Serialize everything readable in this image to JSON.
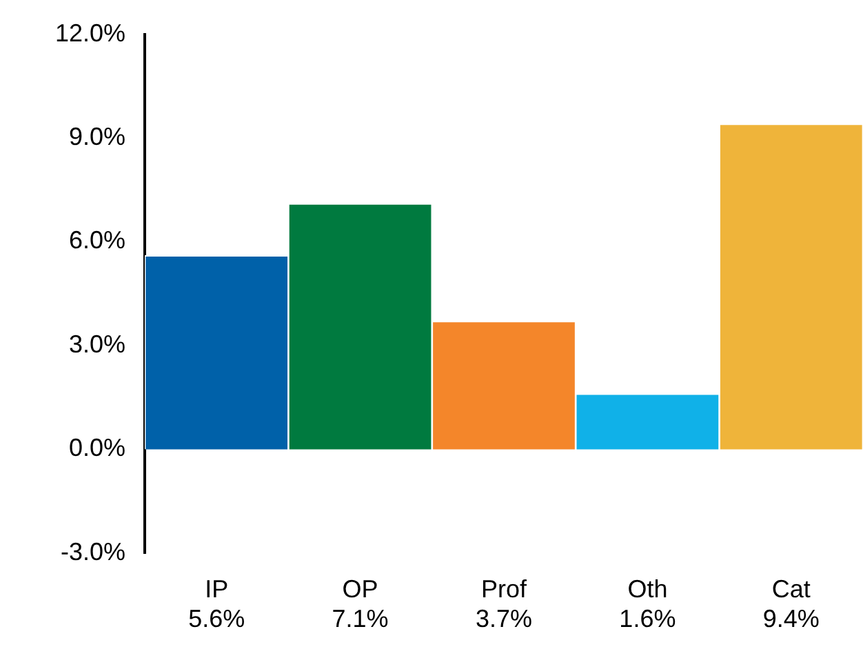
{
  "chart_data": {
    "type": "bar",
    "categories": [
      "IP",
      "OP",
      "Prof",
      "Oth",
      "Cat"
    ],
    "values": [
      5.6,
      7.1,
      3.7,
      1.6,
      9.4
    ],
    "colors": [
      "#0061a9",
      "#007a3f",
      "#f4862a",
      "#10b1e8",
      "#efb43a"
    ],
    "value_labels": [
      "5.6%",
      "7.1%",
      "3.7%",
      "1.6%",
      "9.4%"
    ],
    "ylim": [
      -3,
      12
    ],
    "yticks": [
      {
        "value": -3,
        "label": "-3.0%"
      },
      {
        "value": 0,
        "label": "0.0%"
      },
      {
        "value": 3,
        "label": "3.0%"
      },
      {
        "value": 6,
        "label": "6.0%"
      },
      {
        "value": 9,
        "label": "9.0%"
      },
      {
        "value": 12,
        "label": "12.0%"
      }
    ],
    "grid": false,
    "legend": false
  }
}
